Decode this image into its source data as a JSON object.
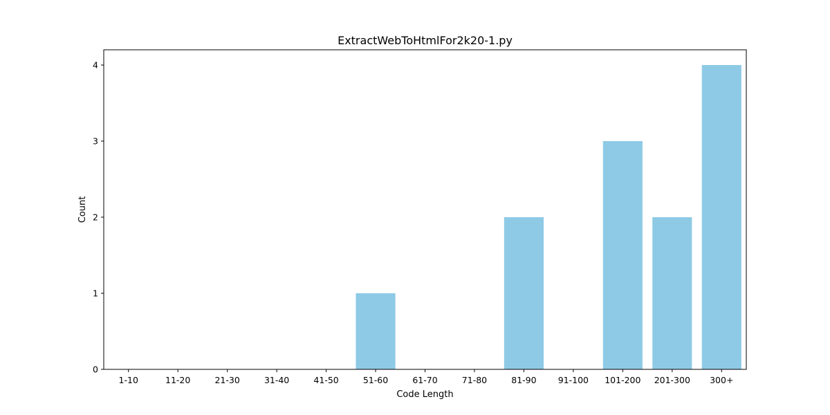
{
  "chart_data": {
    "type": "bar",
    "title": "ExtractWebToHtmlFor2k20-1.py",
    "xlabel": "Code Length",
    "ylabel": "Count",
    "categories": [
      "1-10",
      "11-20",
      "21-30",
      "31-40",
      "41-50",
      "51-60",
      "61-70",
      "71-80",
      "81-90",
      "91-100",
      "101-200",
      "201-300",
      "300+"
    ],
    "values": [
      0,
      0,
      0,
      0,
      0,
      1,
      0,
      0,
      2,
      0,
      3,
      2,
      4
    ],
    "yticks": [
      0,
      1,
      2,
      3,
      4
    ],
    "ylim": [
      0,
      4.2
    ],
    "grid": false,
    "bar_color": "#8ecae6"
  }
}
